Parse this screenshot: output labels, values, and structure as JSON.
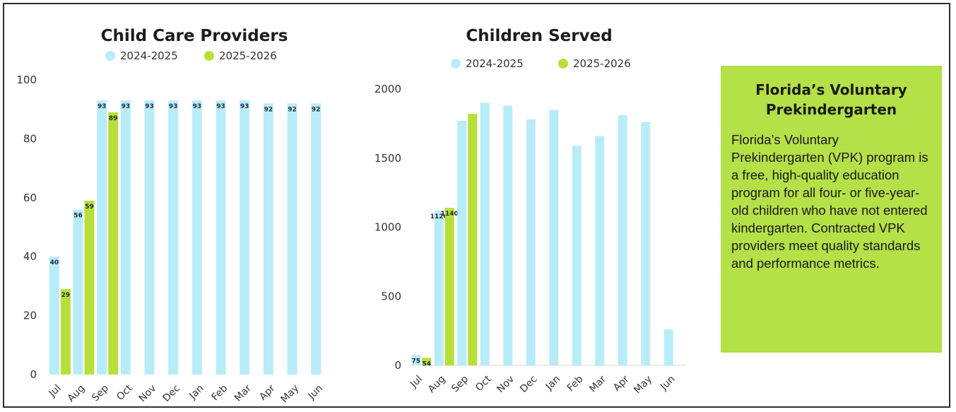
{
  "colors": {
    "series_2024": "#b8ecf8",
    "series_2025": "#b7df3a",
    "info_box": "#b4e048"
  },
  "chart_data": [
    {
      "type": "bar",
      "title": "Child Care Providers",
      "categories": [
        "Jul",
        "Aug",
        "Sep",
        "Oct",
        "Nov",
        "Dec",
        "Jan",
        "Feb",
        "Mar",
        "Apr",
        "May",
        "Jun"
      ],
      "series": [
        {
          "name": "2024-2025",
          "values": [
            40,
            56,
            93,
            93,
            93,
            93,
            93,
            93,
            93,
            92,
            92,
            92
          ]
        },
        {
          "name": "2025-2026",
          "values": [
            29,
            59,
            89,
            null,
            null,
            null,
            null,
            null,
            null,
            null,
            null,
            null
          ]
        }
      ],
      "data_labels": true,
      "ylim": [
        0,
        100
      ],
      "yticks": [
        0,
        20,
        40,
        60,
        80,
        100
      ],
      "legend": "top",
      "grid": false
    },
    {
      "type": "bar",
      "title": "Children Served",
      "categories": [
        "Jul",
        "Aug",
        "Sep",
        "Oct",
        "Nov",
        "Dec",
        "Jan",
        "Feb",
        "Mar",
        "Apr",
        "May",
        "Jun"
      ],
      "series": [
        {
          "name": "2024-2025",
          "values": [
            75,
            1120,
            1770,
            1900,
            1880,
            1780,
            1850,
            1590,
            1660,
            1810,
            1760,
            260
          ]
        },
        {
          "name": "2025-2026",
          "values": [
            54,
            1140,
            1820,
            null,
            null,
            null,
            null,
            null,
            null,
            null,
            null,
            null
          ]
        }
      ],
      "data_labels": [
        true,
        true,
        false,
        false,
        false,
        false,
        false,
        false,
        false,
        false,
        false,
        false
      ],
      "ylim": [
        0,
        2000
      ],
      "yticks": [
        0,
        500,
        1000,
        1500,
        2000
      ],
      "legend": "top",
      "grid": false
    }
  ],
  "info": {
    "title": "Florida’s Voluntary Prekindergarten",
    "body": "Florida’s Voluntary Prekindergarten (VPK) program is a free, high-quality education program for all four- or five-year-old children who have not entered kindergarten. Contracted VPK providers meet quality standards and performance metrics."
  }
}
